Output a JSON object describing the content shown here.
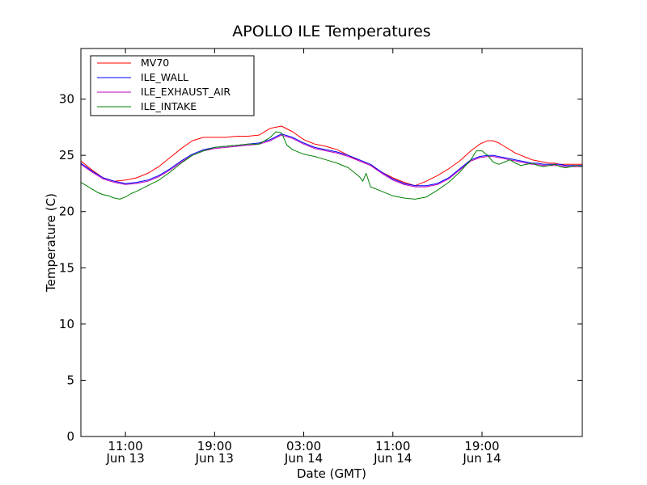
{
  "chart_data": {
    "type": "line",
    "title": "APOLLO ILE Temperatures",
    "xlabel": "Date (GMT)",
    "ylabel": "Temperature (C)",
    "x_unit": "hours since Jun 13 07:00 GMT",
    "xlim": [
      0,
      45
    ],
    "ylim": [
      0,
      34.5
    ],
    "yticks": [
      0,
      5,
      10,
      15,
      20,
      25,
      30
    ],
    "xticks": [
      {
        "x": 4,
        "time": "11:00",
        "date": "Jun 13"
      },
      {
        "x": 12,
        "time": "19:00",
        "date": "Jun 13"
      },
      {
        "x": 20,
        "time": "03:00",
        "date": "Jun 14"
      },
      {
        "x": 28,
        "time": "11:00",
        "date": "Jun 14"
      },
      {
        "x": 36,
        "time": "19:00",
        "date": "Jun 14"
      }
    ],
    "legend_position": "top-left",
    "series": [
      {
        "name": "MV70",
        "color": "#ff0000",
        "x": [
          0,
          1,
          2,
          3,
          4,
          5,
          6,
          7,
          8,
          9,
          10,
          11,
          12,
          13,
          14,
          15,
          16,
          17,
          18,
          19,
          20,
          21,
          22,
          23,
          24,
          25,
          26,
          27,
          28,
          29,
          30,
          31,
          32,
          33,
          34,
          35,
          35.8,
          36.5,
          37,
          37.5,
          38,
          38.5,
          39,
          39.5,
          40,
          40.5,
          41,
          41.5,
          42,
          42.5,
          43,
          43.5,
          44,
          44.5,
          45
        ],
        "y": [
          24.5,
          23.7,
          23.0,
          22.7,
          22.8,
          23.0,
          23.4,
          24.0,
          24.8,
          25.6,
          26.3,
          26.6,
          26.6,
          26.6,
          26.7,
          26.7,
          26.8,
          27.4,
          27.6,
          27.1,
          26.4,
          26.0,
          25.8,
          25.5,
          25.0,
          24.5,
          24.1,
          23.5,
          23.0,
          22.6,
          22.3,
          22.7,
          23.2,
          23.8,
          24.5,
          25.4,
          26.0,
          26.3,
          26.3,
          26.1,
          25.8,
          25.5,
          25.2,
          25.0,
          24.8,
          24.6,
          24.5,
          24.4,
          24.3,
          24.3,
          24.2,
          24.2,
          24.2,
          24.2,
          24.2
        ]
      },
      {
        "name": "ILE_WALL",
        "color": "#0000ff",
        "x": [
          0,
          1,
          2,
          3,
          4,
          5,
          6,
          7,
          8,
          9,
          10,
          11,
          12,
          13,
          14,
          15,
          16,
          17,
          18,
          19,
          20,
          21,
          22,
          23,
          24,
          25,
          26,
          27,
          28,
          29,
          30,
          31,
          32,
          33,
          34,
          35,
          35.8,
          36.5,
          37,
          37.5,
          38,
          38.5,
          39,
          39.5,
          40,
          40.5,
          41,
          41.5,
          42,
          42.5,
          43,
          43.5,
          44,
          44.5,
          45
        ],
        "y": [
          24.3,
          23.6,
          23.0,
          22.7,
          22.5,
          22.6,
          22.8,
          23.2,
          23.8,
          24.5,
          25.1,
          25.5,
          25.7,
          25.8,
          25.9,
          26.0,
          26.1,
          26.4,
          26.9,
          26.6,
          26.1,
          25.7,
          25.5,
          25.3,
          25.0,
          24.6,
          24.2,
          23.5,
          22.9,
          22.5,
          22.3,
          22.3,
          22.5,
          23.0,
          23.8,
          24.6,
          24.9,
          25.0,
          25.0,
          24.9,
          24.8,
          24.7,
          24.6,
          24.5,
          24.4,
          24.3,
          24.3,
          24.2,
          24.2,
          24.2,
          24.2,
          24.1,
          24.1,
          24.1,
          24.1
        ]
      },
      {
        "name": "ILE_EXHAUST_AIR",
        "color": "#bf00bf",
        "x": [
          0,
          1,
          2,
          3,
          4,
          5,
          6,
          7,
          8,
          9,
          10,
          11,
          12,
          13,
          14,
          15,
          16,
          17,
          18,
          19,
          20,
          21,
          22,
          23,
          24,
          25,
          26,
          27,
          28,
          29,
          30,
          31,
          32,
          33,
          34,
          35,
          35.8,
          36.5,
          37,
          37.5,
          38,
          38.5,
          39,
          39.5,
          40,
          40.5,
          41,
          41.5,
          42,
          42.5,
          43,
          43.5,
          44,
          44.5,
          45
        ],
        "y": [
          24.2,
          23.5,
          22.9,
          22.6,
          22.4,
          22.5,
          22.7,
          23.1,
          23.7,
          24.4,
          25.0,
          25.4,
          25.6,
          25.7,
          25.8,
          25.9,
          26.0,
          26.3,
          26.8,
          26.5,
          26.0,
          25.6,
          25.4,
          25.2,
          24.9,
          24.5,
          24.1,
          23.4,
          22.8,
          22.4,
          22.2,
          22.2,
          22.4,
          22.9,
          23.7,
          24.5,
          24.8,
          24.9,
          24.9,
          24.8,
          24.7,
          24.6,
          24.5,
          24.4,
          24.3,
          24.2,
          24.2,
          24.1,
          24.1,
          24.1,
          24.1,
          24.0,
          24.0,
          24.0,
          24.0
        ]
      },
      {
        "name": "ILE_INTAKE",
        "color": "#008000",
        "x": [
          0,
          0.5,
          1,
          1.5,
          2,
          2.5,
          3,
          3.5,
          4,
          4.5,
          5,
          6,
          7,
          8,
          9,
          10,
          11,
          12,
          13,
          14,
          15,
          16,
          17,
          17.5,
          18,
          18.5,
          19,
          20,
          21,
          22,
          23,
          24,
          25,
          25.3,
          25.6,
          26,
          27,
          28,
          29,
          30,
          31,
          32,
          33,
          34,
          35,
          35.5,
          36,
          36.5,
          37,
          37.5,
          38,
          38.5,
          39,
          39.5,
          40,
          40.5,
          41,
          41.5,
          42,
          42.5,
          43,
          43.5,
          44,
          44.5,
          45
        ],
        "y": [
          22.6,
          22.3,
          22.0,
          21.7,
          21.5,
          21.4,
          21.2,
          21.1,
          21.3,
          21.6,
          21.8,
          22.3,
          22.8,
          23.5,
          24.3,
          25.0,
          25.4,
          25.7,
          25.8,
          25.9,
          26.0,
          26.0,
          26.6,
          27.1,
          27.0,
          25.9,
          25.5,
          25.1,
          24.9,
          24.6,
          24.3,
          23.9,
          23.1,
          22.7,
          23.4,
          22.2,
          21.8,
          21.4,
          21.2,
          21.1,
          21.3,
          21.9,
          22.6,
          23.5,
          24.6,
          25.4,
          25.4,
          25.0,
          24.4,
          24.2,
          24.4,
          24.6,
          24.3,
          24.1,
          24.2,
          24.3,
          24.1,
          24.0,
          24.1,
          24.2,
          24.0,
          23.9,
          24.0,
          24.1,
          24.0
        ]
      }
    ]
  }
}
